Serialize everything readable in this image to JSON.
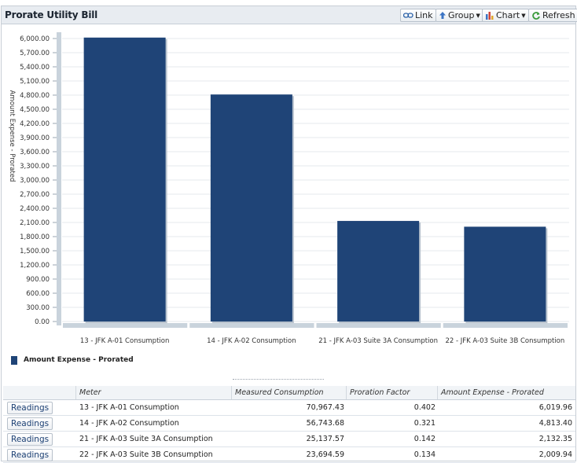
{
  "panel": {
    "title": "Prorate Utility Bill",
    "toolbar": {
      "link_label": "Link",
      "group_label": "Group",
      "chart_label": "Chart",
      "refresh_label": "Refresh"
    }
  },
  "chart_data": {
    "type": "bar",
    "title": "",
    "xlabel": "",
    "ylabel": "Amount Expense - Prorated",
    "ylim": [
      0,
      6000
    ],
    "ytick_step": 300,
    "categories": [
      "13 - JFK A-01 Consumption",
      "14 - JFK A-02 Consumption",
      "21 - JFK A-03 Suite 3A Consumption",
      "22 - JFK A-03 Suite 3B Consumption"
    ],
    "series": [
      {
        "name": "Amount Expense - Prorated",
        "values": [
          6019.96,
          4813.4,
          2132.35,
          2009.94
        ]
      }
    ],
    "bar_color": "#1f4477",
    "legend": "bottom-left"
  },
  "legend": {
    "label": "Amount Expense - Prorated"
  },
  "grid": {
    "columns": {
      "meter": "Meter",
      "measured": "Measured Consumption",
      "proration": "Proration Factor",
      "amount": "Amount Expense - Prorated"
    },
    "rows": [
      {
        "button": "Readings",
        "meter": "13 - JFK A-01 Consumption",
        "measured": "70,967.43",
        "proration": "0.402",
        "amount": "6,019.96"
      },
      {
        "button": "Readings",
        "meter": "14 - JFK A-02 Consumption",
        "measured": "56,743.68",
        "proration": "0.321",
        "amount": "4,813.40"
      },
      {
        "button": "Readings",
        "meter": "21 - JFK A-03 Suite 3A Consumption",
        "measured": "25,137.57",
        "proration": "0.142",
        "amount": "2,132.35"
      },
      {
        "button": "Readings",
        "meter": "22 - JFK A-03 Suite 3B Consumption",
        "measured": "23,694.59",
        "proration": "0.134",
        "amount": "2,009.94"
      }
    ]
  }
}
